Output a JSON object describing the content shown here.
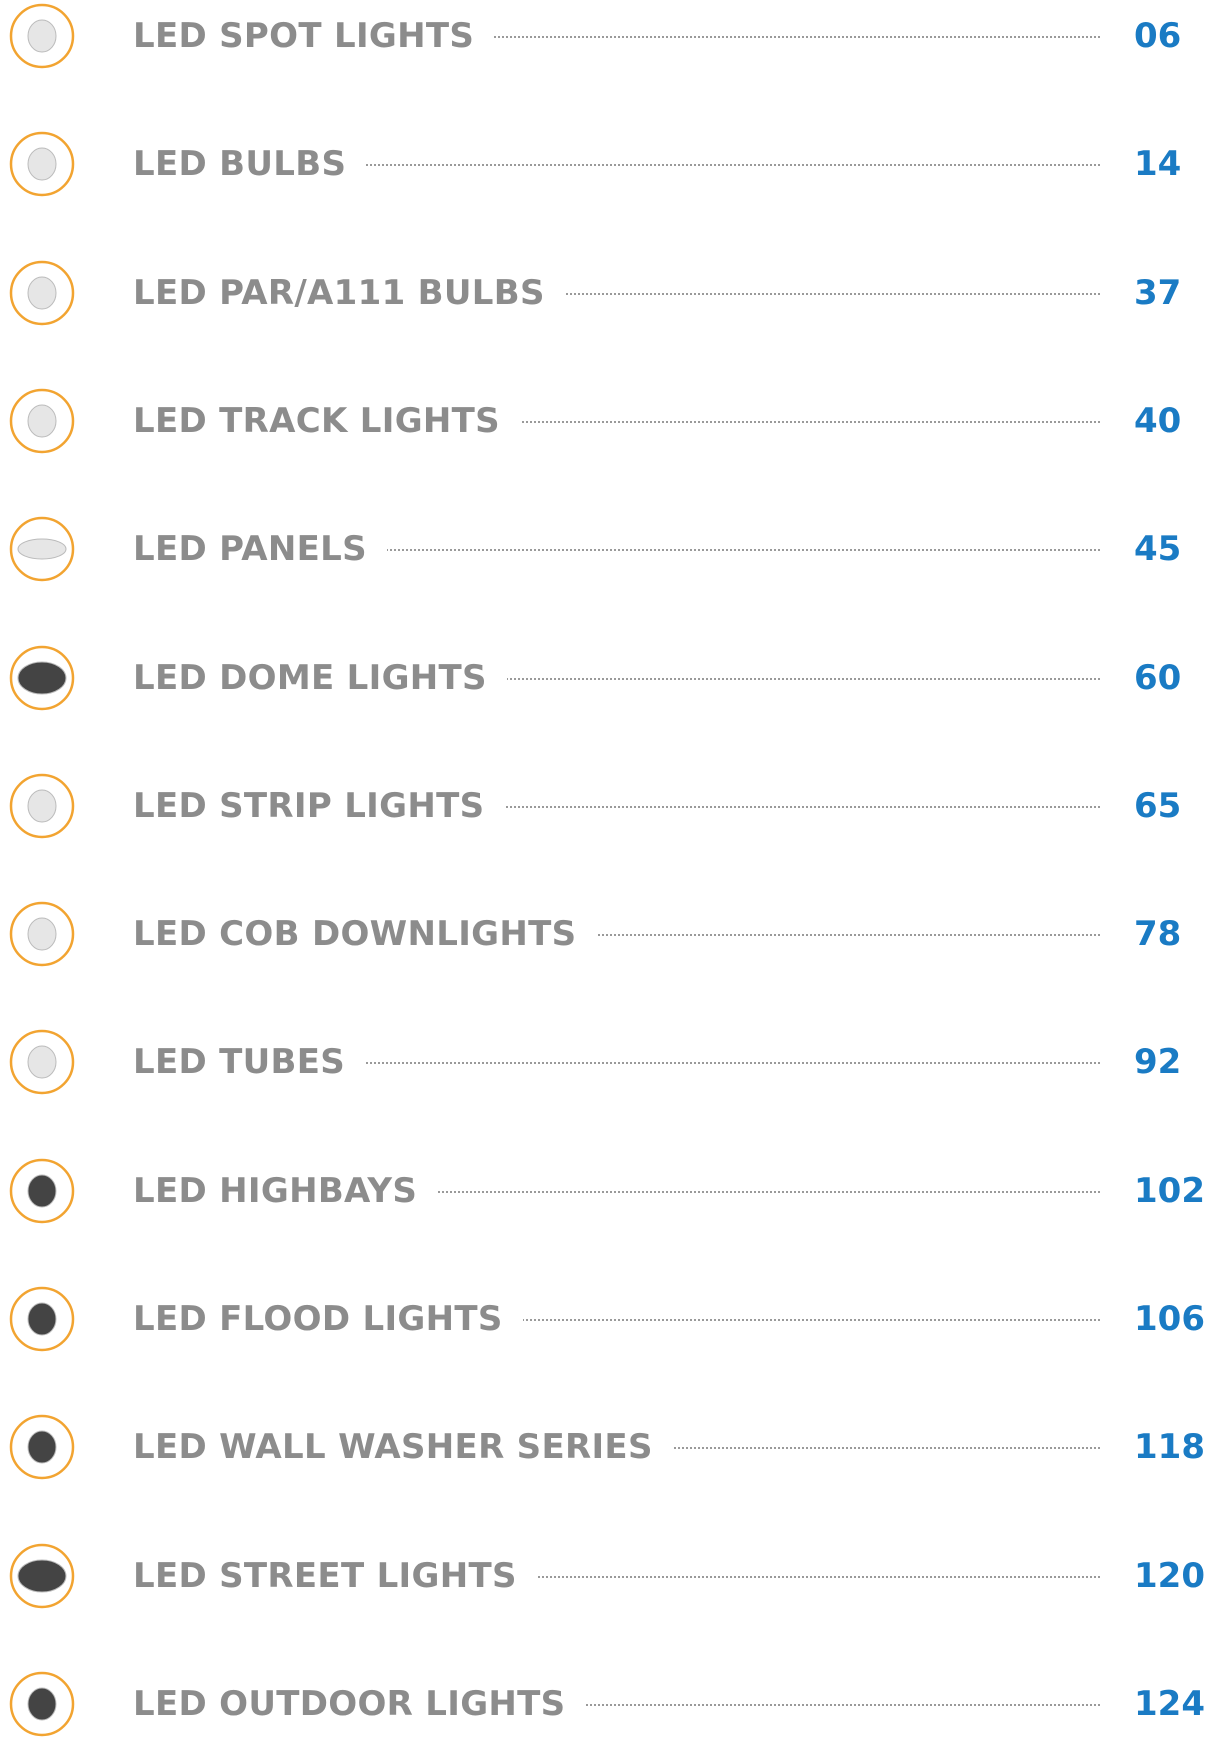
{
  "entries": [
    {
      "title": "LED SPOT LIGHTS",
      "page": "06"
    },
    {
      "title": "LED BULBS",
      "page": "14"
    },
    {
      "title": "LED PAR/A111 BULBS",
      "page": "37"
    },
    {
      "title": "LED TRACK LIGHTS",
      "page": "40"
    },
    {
      "title": "LED PANELS",
      "page": "45"
    },
    {
      "title": "LED DOME LIGHTS",
      "page": "60"
    },
    {
      "title": "LED STRIP LIGHTS",
      "page": "65"
    },
    {
      "title": "LED COB DOWNLIGHTS",
      "page": "78"
    },
    {
      "title": "LED TUBES",
      "page": "92"
    },
    {
      "title": "LED HIGHBAYS",
      "page": "102"
    },
    {
      "title": "LED FLOOD LIGHTS",
      "page": "106"
    },
    {
      "title": "LED WALL WASHER SERIES",
      "page": "118"
    },
    {
      "title": "LED STREET LIGHTS",
      "page": "120"
    },
    {
      "title": "LED OUTDOOR LIGHTS",
      "page": "124"
    }
  ]
}
